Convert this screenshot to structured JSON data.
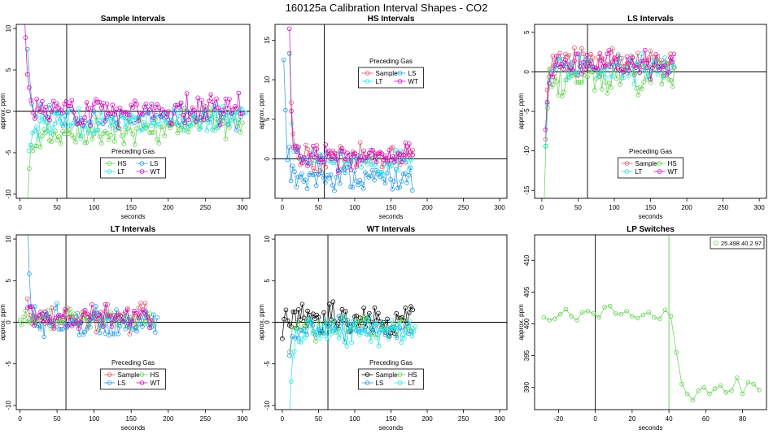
{
  "title": "160125a   Calibration Interval Shapes - CO2",
  "chart_data": [
    {
      "type": "scatter",
      "title": "Sample Intervals",
      "xlabel": "seconds",
      "ylabel": "approx. ppm",
      "xlim": [
        -5,
        310
      ],
      "ylim": [
        -10.5,
        10.5
      ],
      "xticks": [
        0,
        50,
        100,
        150,
        200,
        250,
        300
      ],
      "yticks": [
        -10,
        -5,
        0,
        5,
        10
      ],
      "vline": 63,
      "hline": 0,
      "legend": {
        "title": "Preceding Gas",
        "position": "bottom-center",
        "cols": 2,
        "entries": [
          "HS",
          "LS",
          "LT",
          "WT"
        ]
      },
      "series": [
        {
          "name": "HS",
          "color": "#61D04F",
          "start": 10,
          "end": 300,
          "step": 2.5,
          "plateau": -3.3,
          "transient": -7,
          "tau": 4,
          "noise": 0.9,
          "drift": 2.3,
          "seed": 11
        },
        {
          "name": "LS",
          "color": "#2297E6",
          "start": 10,
          "end": 300,
          "step": 6,
          "plateau": -0.7,
          "transient": 9,
          "tau": 3,
          "noise": 0.7,
          "drift": 0,
          "seed": 12
        },
        {
          "name": "LT",
          "color": "#28E2E5",
          "start": 12,
          "end": 305,
          "step": 2.5,
          "plateau": -1.4,
          "transient": -3.5,
          "tau": 5,
          "noise": 0.8,
          "drift": 0.6,
          "seed": 13
        },
        {
          "name": "WT",
          "color": "#CD0BBC",
          "start": 5,
          "end": 300,
          "step": 2.5,
          "plateau": 0.1,
          "transient": 14,
          "tau": 4,
          "noise": 0.9,
          "drift": 0,
          "seed": 14
        }
      ]
    },
    {
      "type": "scatter",
      "title": "HS Intervals",
      "xlabel": "seconds",
      "ylabel": "approx. ppm",
      "xlim": [
        -10,
        310
      ],
      "ylim": [
        -5,
        17
      ],
      "xticks": [
        0,
        50,
        100,
        150,
        200,
        250,
        300
      ],
      "yticks": [
        0,
        5,
        10,
        15
      ],
      "vline": 58,
      "hline": 0,
      "legend": {
        "title": "Preceding Gas",
        "position": "top-center",
        "cols": 2,
        "entries": [
          "Sample",
          "LS",
          "LT",
          "WT"
        ]
      },
      "series": [
        {
          "name": "Sample",
          "color": "#DF536B",
          "start": 10,
          "end": 180,
          "step": 2.5,
          "plateau": 0.1,
          "transient": 14,
          "tau": 3,
          "noise": 0.8,
          "drift": 0,
          "seed": 21
        },
        {
          "name": "LS",
          "color": "#2297E6",
          "start": 2,
          "end": 180,
          "step": 2.5,
          "plateau": -2.3,
          "transient": 16,
          "tau": 4,
          "noise": 0.9,
          "drift": 0,
          "seed": 22
        },
        {
          "name": "LT",
          "color": "#28E2E5",
          "start": 10,
          "end": 180,
          "step": 3,
          "plateau": -0.2,
          "transient": 12,
          "tau": 3,
          "noise": 0.8,
          "drift": 0,
          "seed": 23
        },
        {
          "name": "WT",
          "color": "#CD0BBC",
          "start": 10,
          "end": 180,
          "step": 2.5,
          "plateau": 0.3,
          "transient": 15,
          "tau": 3,
          "noise": 0.8,
          "drift": 0,
          "seed": 24
        }
      ]
    },
    {
      "type": "scatter",
      "title": "LS Intervals",
      "xlabel": "seconds",
      "ylabel": "approx. ppm",
      "xlim": [
        -10,
        310
      ],
      "ylim": [
        -16,
        6
      ],
      "xticks": [
        0,
        50,
        100,
        150,
        200,
        250,
        300
      ],
      "yticks": [
        -15,
        -10,
        -5,
        0,
        5
      ],
      "vline": 63,
      "hline": 0,
      "legend": {
        "title": "Preceding Gas",
        "position": "bottom-center",
        "cols": 2,
        "entries": [
          "Sample",
          "HS",
          "LT",
          "WT"
        ]
      },
      "series": [
        {
          "name": "Sample",
          "color": "#DF536B",
          "start": 5,
          "end": 183,
          "step": 2.5,
          "plateau": 1.3,
          "transient": -9,
          "tau": 3,
          "noise": 0.8,
          "drift": 0,
          "seed": 31
        },
        {
          "name": "HS",
          "color": "#61D04F",
          "start": 3,
          "end": 183,
          "step": 2.5,
          "plateau": -0.3,
          "transient": -15,
          "tau": 4,
          "noise": 1.2,
          "drift": 0,
          "seed": 32
        },
        {
          "name": "LT",
          "color": "#28E2E5",
          "start": 5,
          "end": 183,
          "step": 2.5,
          "plateau": 0.6,
          "transient": -10,
          "tau": 3,
          "noise": 0.8,
          "drift": 0,
          "seed": 33
        },
        {
          "name": "WT",
          "color": "#CD0BBC",
          "start": 5,
          "end": 183,
          "step": 2.5,
          "plateau": 1.0,
          "transient": -8,
          "tau": 3,
          "noise": 0.8,
          "drift": 0,
          "seed": 34
        }
      ]
    },
    {
      "type": "scatter",
      "title": "LT Intervals",
      "xlabel": "seconds",
      "ylabel": "approx. ppm",
      "xlim": [
        -5,
        310
      ],
      "ylim": [
        -10.5,
        10.5
      ],
      "xticks": [
        0,
        50,
        100,
        150,
        200,
        250,
        300
      ],
      "yticks": [
        -10,
        -5,
        0,
        5,
        10
      ],
      "vline": 62,
      "hline": 0,
      "legend": {
        "title": "Preceding Gas",
        "position": "bottom-center",
        "cols": 2,
        "entries": [
          "Sample",
          "HS",
          "LS",
          "WT"
        ]
      },
      "series": [
        {
          "name": "Sample",
          "color": "#DF536B",
          "start": 10,
          "end": 180,
          "step": 3,
          "plateau": 0.4,
          "transient": 2,
          "tau": 3,
          "noise": 0.8,
          "drift": 0,
          "seed": 41
        },
        {
          "name": "HS",
          "color": "#61D04F",
          "start": 0,
          "end": 180,
          "step": 2.5,
          "plateau": 0.4,
          "transient": -1.5,
          "tau": 4,
          "noise": 0.7,
          "drift": 0,
          "seed": 42
        },
        {
          "name": "LS",
          "color": "#2297E6",
          "start": 10,
          "end": 185,
          "step": 2.5,
          "plateau": 0.1,
          "transient": 12,
          "tau": 3,
          "noise": 0.9,
          "drift": 0,
          "seed": 43
        },
        {
          "name": "WT",
          "color": "#CD0BBC",
          "start": 10,
          "end": 180,
          "step": 3,
          "plateau": 0.6,
          "transient": 1.5,
          "tau": 3,
          "noise": 0.7,
          "drift": 0,
          "seed": 44
        }
      ]
    },
    {
      "type": "scatter",
      "title": "WT Intervals",
      "xlabel": "seconds",
      "ylabel": "approx. ppm",
      "xlim": [
        -10,
        310
      ],
      "ylim": [
        -10.5,
        10.5
      ],
      "xticks": [
        0,
        50,
        100,
        150,
        200,
        250,
        300
      ],
      "yticks": [
        -10,
        -5,
        0,
        5,
        10
      ],
      "vline": 63,
      "hline": 0,
      "legend": {
        "title": "Preceding Gas",
        "position": "bottom-center",
        "cols": 2,
        "entries": [
          "Sample",
          "HS",
          "LS",
          "LT"
        ]
      },
      "series": [
        {
          "name": "Sample",
          "color": "#000000",
          "start": 0,
          "end": 180,
          "step": 2.5,
          "plateau": 0.2,
          "transient": -1,
          "tau": 3,
          "noise": 0.9,
          "drift": 0,
          "seed": 51
        },
        {
          "name": "HS",
          "color": "#61D04F",
          "start": 10,
          "end": 180,
          "step": 4,
          "plateau": -0.6,
          "transient": -3,
          "tau": 3,
          "noise": 0.7,
          "drift": 0,
          "seed": 52
        },
        {
          "name": "LS",
          "color": "#2297E6",
          "start": 10,
          "end": 180,
          "step": 4,
          "plateau": -0.8,
          "transient": -3,
          "tau": 3,
          "noise": 0.7,
          "drift": 0,
          "seed": 53
        },
        {
          "name": "LT",
          "color": "#28E2E5",
          "start": 10,
          "end": 185,
          "step": 2.2,
          "plateau": -1.0,
          "transient": -11,
          "tau": 4,
          "noise": 0.8,
          "drift": 0,
          "seed": 54
        }
      ]
    },
    {
      "type": "line",
      "title": "LP Switches",
      "xlabel": "seconds",
      "ylabel": "approx. ppm",
      "xlim": [
        -33,
        93
      ],
      "ylim": [
        386.5,
        414
      ],
      "xticks": [
        -20,
        0,
        20,
        40,
        60,
        80
      ],
      "yticks": [
        390,
        395,
        400,
        405,
        410
      ],
      "vline": 0,
      "vline2": 40,
      "legend": {
        "position": "top-right",
        "entries": [
          "25.498 40.2 97"
        ]
      },
      "series": [
        {
          "name": "25.498 40.2 97",
          "color": "#61D04F",
          "x": [
            -28,
            -25,
            -22,
            -19,
            -16,
            -13,
            -10,
            -7,
            -4,
            -1,
            2,
            5,
            8,
            11,
            14,
            17,
            20,
            23,
            26,
            29,
            32,
            35,
            38,
            41,
            44,
            47,
            50,
            53,
            56,
            59,
            62,
            65,
            68,
            71,
            74,
            77,
            80,
            83,
            86,
            89
          ],
          "y": [
            401.0,
            400.6,
            400.8,
            401.5,
            402.3,
            401.2,
            400.6,
            401.8,
            402.0,
            401.6,
            401.0,
            402.6,
            402.8,
            401.6,
            401.5,
            402.0,
            401.2,
            400.9,
            401.4,
            401.8,
            401.0,
            400.8,
            402.2,
            401.2,
            395.5,
            390.5,
            389.0,
            388.0,
            389.5,
            390.0,
            389.0,
            389.8,
            390.3,
            389.2,
            389.5,
            391.5,
            389.0,
            390.8,
            390.5,
            389.6
          ]
        }
      ]
    }
  ]
}
